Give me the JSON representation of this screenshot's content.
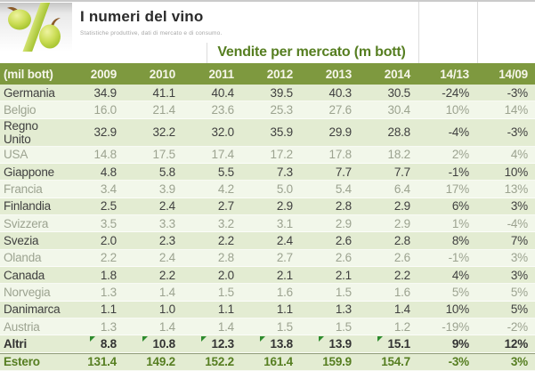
{
  "site": {
    "title": "I numeri del vino",
    "subtitle": "Statistiche produttive, dati di mercato e di consumo.",
    "logo_icon": "grapes-percent-icon"
  },
  "chart_data": {
    "type": "table",
    "title": "Vendite per mercato (m bott)",
    "unit_label": "(mil bott)",
    "columns": [
      "(mil bott)",
      "2009",
      "2010",
      "2011",
      "2012",
      "2013",
      "2014",
      "14/13",
      "14/09"
    ],
    "rows": [
      {
        "label": "Germania",
        "values": [
          "34.9",
          "41.1",
          "40.4",
          "39.5",
          "40.3",
          "30.5",
          "-24%",
          "-3%"
        ],
        "emphasis": "strong"
      },
      {
        "label": "Belgio",
        "values": [
          "16.0",
          "21.4",
          "23.6",
          "25.3",
          "27.6",
          "30.4",
          "10%",
          "14%"
        ],
        "emphasis": "muted"
      },
      {
        "label": "Regno Unito",
        "values": [
          "32.9",
          "32.2",
          "32.0",
          "35.9",
          "29.9",
          "28.8",
          "-4%",
          "-3%"
        ],
        "emphasis": "strong"
      },
      {
        "label": "USA",
        "values": [
          "14.8",
          "17.5",
          "17.4",
          "17.2",
          "17.8",
          "18.2",
          "2%",
          "4%"
        ],
        "emphasis": "muted"
      },
      {
        "label": "Giappone",
        "values": [
          "4.8",
          "5.8",
          "5.5",
          "7.3",
          "7.7",
          "7.7",
          "-1%",
          "10%"
        ],
        "emphasis": "strong"
      },
      {
        "label": "Francia",
        "values": [
          "3.4",
          "3.9",
          "4.2",
          "5.0",
          "5.4",
          "6.4",
          "17%",
          "13%"
        ],
        "emphasis": "muted"
      },
      {
        "label": "Finlandia",
        "values": [
          "2.5",
          "2.4",
          "2.7",
          "2.9",
          "2.8",
          "2.9",
          "6%",
          "3%"
        ],
        "emphasis": "strong"
      },
      {
        "label": "Svizzera",
        "values": [
          "3.5",
          "3.3",
          "3.2",
          "3.1",
          "2.9",
          "2.9",
          "1%",
          "-4%"
        ],
        "emphasis": "muted"
      },
      {
        "label": "Svezia",
        "values": [
          "2.0",
          "2.3",
          "2.2",
          "2.4",
          "2.6",
          "2.8",
          "8%",
          "7%"
        ],
        "emphasis": "strong"
      },
      {
        "label": "Olanda",
        "values": [
          "2.2",
          "2.4",
          "2.8",
          "2.7",
          "2.6",
          "2.6",
          "-1%",
          "3%"
        ],
        "emphasis": "muted"
      },
      {
        "label": "Canada",
        "values": [
          "1.8",
          "2.2",
          "2.0",
          "2.1",
          "2.1",
          "2.2",
          "4%",
          "3%"
        ],
        "emphasis": "strong"
      },
      {
        "label": "Norvegia",
        "values": [
          "1.3",
          "1.4",
          "1.5",
          "1.6",
          "1.5",
          "1.6",
          "5%",
          "5%"
        ],
        "emphasis": "muted"
      },
      {
        "label": "Danimarca",
        "values": [
          "1.1",
          "1.0",
          "1.1",
          "1.1",
          "1.3",
          "1.4",
          "10%",
          "5%"
        ],
        "emphasis": "strong"
      },
      {
        "label": "Austria",
        "values": [
          "1.3",
          "1.4",
          "1.4",
          "1.5",
          "1.5",
          "1.2",
          "-19%",
          "-2%"
        ],
        "emphasis": "muted"
      },
      {
        "label": "Altri",
        "values": [
          "8.8",
          "10.8",
          "12.3",
          "13.8",
          "13.9",
          "15.1",
          "9%",
          "12%"
        ],
        "emphasis": "boldrow",
        "flag_cells": [
          0,
          1,
          2,
          3,
          4,
          5
        ]
      },
      {
        "label": "Estero",
        "values": [
          "131.4",
          "149.2",
          "152.2",
          "161.4",
          "159.9",
          "154.7",
          "-3%",
          "3%"
        ],
        "emphasis": "total"
      }
    ]
  },
  "colors": {
    "header_bg": "#7e993f",
    "header_text": "#f6f6ea",
    "title_green": "#567e21",
    "row_green_bg": "#e3ecd2",
    "row_pale_bg": "#f2f7ea",
    "text_dark": "#3f3f3f",
    "text_muted": "#9ca390",
    "total_text": "#567e21",
    "flag_green": "#2e8b2e",
    "grape_green": "#b5cf3a"
  }
}
